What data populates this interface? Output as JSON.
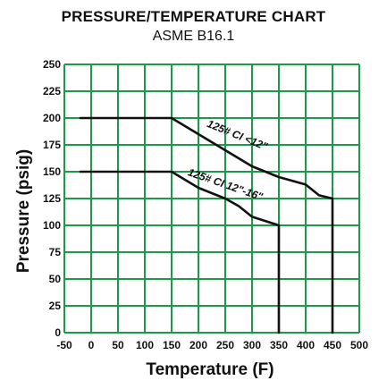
{
  "chart_data": {
    "type": "line",
    "title": "PRESSURE/TEMPERATURE CHART",
    "subtitle": "ASME B16.1",
    "xlabel": "Temperature (F)",
    "ylabel": "Pressure (psig)",
    "xlim": [
      -50,
      500
    ],
    "ylim": [
      0,
      250
    ],
    "x_ticks": [
      -50,
      0,
      50,
      100,
      150,
      200,
      250,
      300,
      350,
      400,
      450,
      500
    ],
    "y_ticks": [
      0,
      25,
      50,
      75,
      100,
      125,
      150,
      175,
      200,
      225,
      250
    ],
    "grid": true,
    "colors": {
      "grid": "#1a9a4a",
      "line": "#111111",
      "text": "#111111"
    },
    "series": [
      {
        "name": "125# CI <12\"",
        "points": [
          [
            -20,
            200
          ],
          [
            150,
            200
          ],
          [
            200,
            185
          ],
          [
            250,
            170
          ],
          [
            300,
            155
          ],
          [
            350,
            145
          ],
          [
            400,
            138
          ],
          [
            425,
            128
          ],
          [
            450,
            125
          ],
          [
            450,
            0
          ]
        ]
      },
      {
        "name": "125# CI 12\"-16\"",
        "points": [
          [
            -20,
            150
          ],
          [
            150,
            150
          ],
          [
            200,
            135
          ],
          [
            250,
            125
          ],
          [
            275,
            118
          ],
          [
            300,
            108
          ],
          [
            350,
            100
          ],
          [
            350,
            0
          ]
        ]
      }
    ]
  }
}
